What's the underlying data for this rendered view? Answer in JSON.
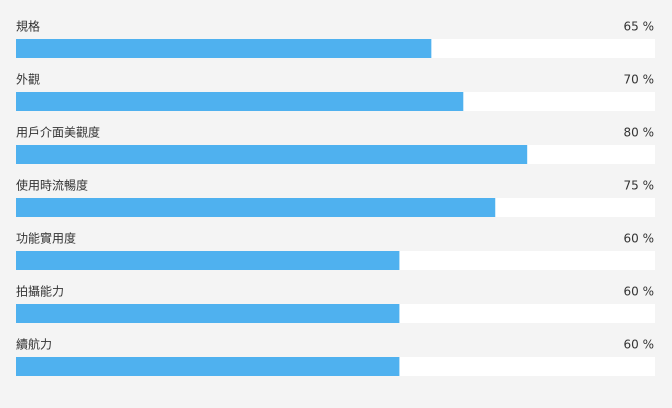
{
  "chart_data": {
    "type": "bar",
    "categories": [
      "規格",
      "外觀",
      "用戶介面美觀度",
      "使用時流暢度",
      "功能實用度",
      "拍攝能力",
      "續航力"
    ],
    "values": [
      65,
      70,
      80,
      75,
      60,
      60,
      60
    ],
    "value_labels": [
      "65 %",
      "70 %",
      "80 %",
      "75 %",
      "60 %",
      "60 %",
      "60 %"
    ],
    "color": "#4fb1ef",
    "xlim": [
      0,
      100
    ]
  }
}
